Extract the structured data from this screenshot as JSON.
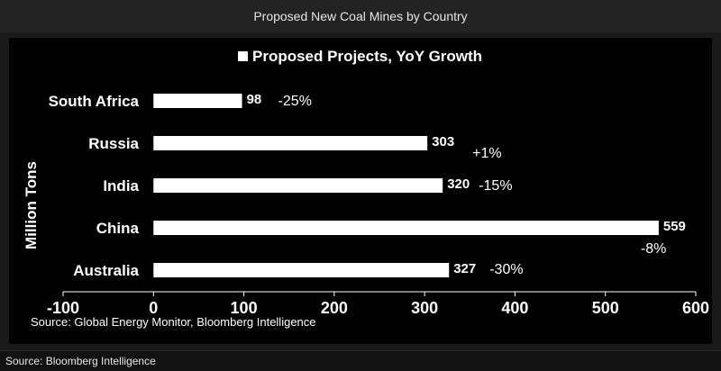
{
  "page": {
    "title": "Proposed New Coal Mines by Country",
    "footer": "Source: Bloomberg Intelligence"
  },
  "chart_data": {
    "type": "bar",
    "orientation": "horizontal",
    "categories": [
      "South Africa",
      "Russia",
      "India",
      "China",
      "Australia"
    ],
    "series": [
      {
        "name": "Proposed Projects, YoY Growth",
        "values": [
          98,
          303,
          320,
          559,
          327
        ],
        "yoy_labels": [
          "-25%",
          "+1%",
          "-15%",
          "-8%",
          "-30%"
        ]
      }
    ],
    "xlim": [
      -100,
      600
    ],
    "x_ticks": [
      "-100",
      "0",
      "100",
      "200",
      "300",
      "400",
      "500",
      "600"
    ],
    "ylabel": "Million Tons",
    "source_note": "Source: Global Energy Monitor, Bloomberg Intelligence",
    "legend_position": "top",
    "grid": false,
    "colors": {
      "bar": "#ffffff",
      "background": "#000000",
      "text": "#ffffff"
    }
  }
}
